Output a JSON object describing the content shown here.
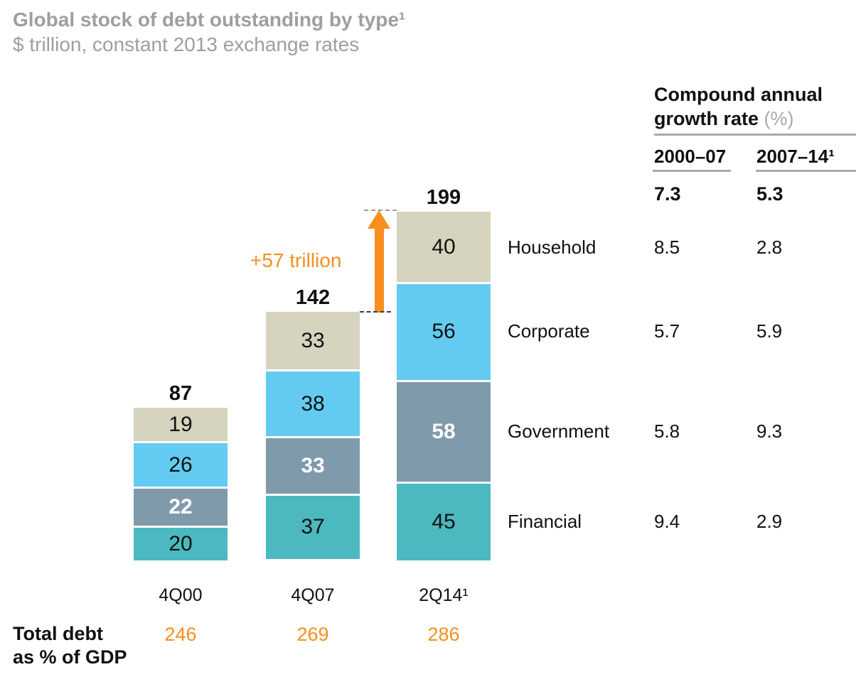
{
  "header": {
    "title": "Global stock of debt outstanding by type¹",
    "subtitle": "$ trillion, constant 2013 exchange rates"
  },
  "chart_data": {
    "type": "bar",
    "stacked": true,
    "unit": "$ trillion",
    "categories": [
      "4Q00",
      "4Q07",
      "2Q14¹"
    ],
    "series": [
      {
        "name": "Household",
        "values": [
          19,
          33,
          40
        ],
        "color": "#D6D3BF",
        "value_text_color": "#111111",
        "value_bold": false,
        "cagr_2000_07": "8.5",
        "cagr_2007_14": "2.8"
      },
      {
        "name": "Corporate",
        "values": [
          26,
          38,
          56
        ],
        "color": "#63CBF1",
        "value_text_color": "#111111",
        "value_bold": false,
        "cagr_2000_07": "5.7",
        "cagr_2007_14": "5.9"
      },
      {
        "name": "Government",
        "values": [
          22,
          33,
          58
        ],
        "color": "#7F9AAB",
        "value_text_color": "#FFFFFF",
        "value_bold": true,
        "cagr_2000_07": "5.8",
        "cagr_2007_14": "9.3"
      },
      {
        "name": "Financial",
        "values": [
          20,
          37,
          45
        ],
        "color": "#4BB9BF",
        "value_text_color": "#111111",
        "value_bold": false,
        "cagr_2000_07": "9.4",
        "cagr_2007_14": "2.9"
      }
    ],
    "totals": [
      87,
      142,
      199
    ],
    "annotation": {
      "text": "+57 trillion",
      "color": "#F78F1E"
    },
    "legend_position": "right-labels",
    "axis": {
      "gridlines": false,
      "value_axis_hidden": true
    }
  },
  "cagr_panel": {
    "title": "Compound annual growth rate",
    "unit": "(%)",
    "columns": [
      "2000–07",
      "2007–14¹"
    ],
    "totals": [
      "7.3",
      "5.3"
    ]
  },
  "footer": {
    "label_line1": "Total debt",
    "label_line2": "as % of GDP",
    "values": [
      "246",
      "269",
      "286"
    ],
    "value_color": "#F78F1E"
  }
}
